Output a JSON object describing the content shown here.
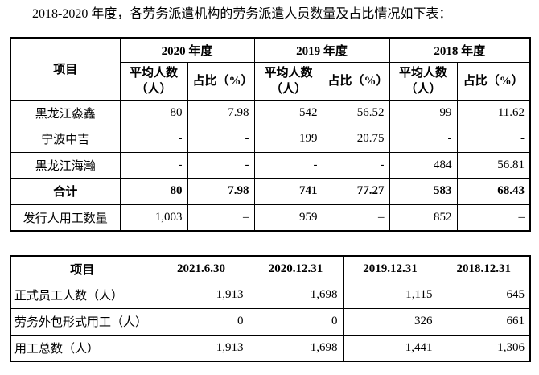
{
  "title": "2018-2020 年度，各劳务派遣机构的劳务派遣人员数量及占比情况如下表：",
  "table1": {
    "item_header": "项目",
    "years": [
      "2020 年度",
      "2019 年度",
      "2018 年度"
    ],
    "sub_headers": [
      "平均人数（人）",
      "占比（%）",
      "平均人数（人）",
      "占比（%）",
      "平均人数（人）",
      "占比（%）"
    ],
    "rows": [
      [
        "黑龙江淼鑫",
        "80",
        "7.98",
        "542",
        "56.52",
        "99",
        "11.62"
      ],
      [
        "宁波中吉",
        "-",
        "-",
        "199",
        "20.75",
        "-",
        "-"
      ],
      [
        "黑龙江海瀚",
        "-",
        "-",
        "-",
        "-",
        "484",
        "56.81"
      ],
      [
        "合计",
        "80",
        "7.98",
        "741",
        "77.27",
        "583",
        "68.43"
      ],
      [
        "发行人用工数量",
        "1,003",
        "–",
        "959",
        "–",
        "852",
        "–"
      ]
    ]
  },
  "table2": {
    "headers": [
      "项目",
      "2021.6.30",
      "2020.12.31",
      "2019.12.31",
      "2018.12.31"
    ],
    "rows": [
      [
        "正式员工人数（人）",
        "1,913",
        "1,698",
        "1,115",
        "645"
      ],
      [
        "劳务外包形式用工（人）",
        "0",
        "0",
        "326",
        "661"
      ],
      [
        "用工总数（人）",
        "1,913",
        "1,698",
        "1,441",
        "1,306"
      ]
    ]
  }
}
